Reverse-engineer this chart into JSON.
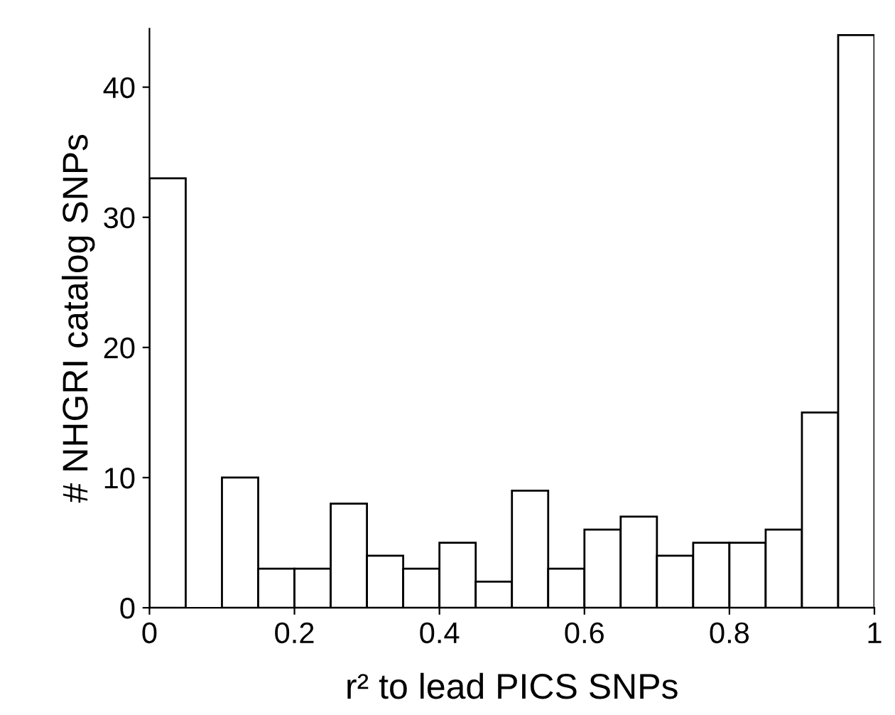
{
  "chart_data": {
    "type": "histogram",
    "xlabel": "r² to lead PICS SNPs",
    "ylabel": "# NHGRI catalog SNPs",
    "bins": [
      0,
      0.05,
      0.1,
      0.15,
      0.2,
      0.25,
      0.3,
      0.35,
      0.4,
      0.45,
      0.5,
      0.55,
      0.6,
      0.65,
      0.7,
      0.75,
      0.8,
      0.85,
      0.9,
      0.95,
      1
    ],
    "values": [
      33,
      0,
      10,
      3,
      3,
      8,
      4,
      3,
      5,
      2,
      9,
      3,
      6,
      7,
      4,
      5,
      5,
      6,
      15,
      44
    ],
    "color": "#ffffff",
    "xlim": [
      0,
      1
    ],
    "ylim": [
      0,
      44.5
    ],
    "xticks": [
      0,
      {
        "value": 0.2,
        "label": "0.2"
      },
      {
        "value": 0.4,
        "label": "0.4"
      },
      {
        "value": 0.6,
        "label": "0.6"
      },
      {
        "value": 0.8,
        "label": "0.8"
      },
      1
    ],
    "yticks": [
      0,
      10,
      20,
      30,
      40
    ],
    "grid": false,
    "legend": false
  }
}
